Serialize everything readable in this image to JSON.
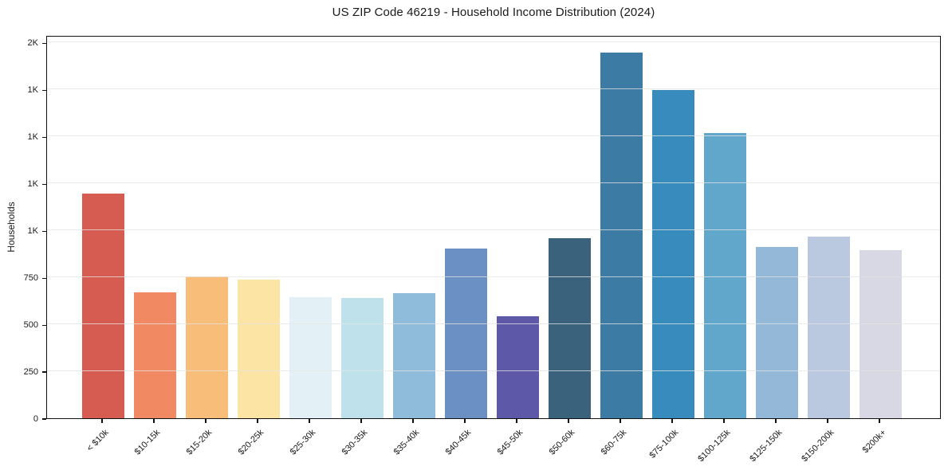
{
  "chart_data": {
    "type": "bar",
    "title": "US ZIP Code 46219 - Household Income Distribution (2024)",
    "ylabel": "Households",
    "xlabel": "",
    "categories": [
      "< $10k",
      "$10-15k",
      "$15-20k",
      "$20-25k",
      "$25-30k",
      "$30-35k",
      "$35-40k",
      "$40-45k",
      "$45-50k",
      "$50-60k",
      "$60-75k",
      "$75-100k",
      "$100-125k",
      "$125-150k",
      "$150-200k",
      "$200k+"
    ],
    "values": [
      1195,
      670,
      755,
      738,
      645,
      640,
      665,
      905,
      545,
      957,
      1945,
      1748,
      1518,
      910,
      965,
      895
    ],
    "bar_colors": [
      "#d65c52",
      "#f18a62",
      "#f9bd7a",
      "#fce5a4",
      "#e3f1f6",
      "#bfe1ec",
      "#8fbcdb",
      "#6a90c4",
      "#5d59a8",
      "#3a627c",
      "#3b7ba4",
      "#388cbd",
      "#61a7cc",
      "#94b8d7",
      "#bac8e0",
      "#d7d8e4"
    ],
    "ylim": [
      0,
      2040
    ],
    "yticks": [
      {
        "value": 0,
        "label": "0"
      },
      {
        "value": 250,
        "label": "250"
      },
      {
        "value": 500,
        "label": "500"
      },
      {
        "value": 750,
        "label": "750"
      },
      {
        "value": 1000,
        "label": "1K"
      },
      {
        "value": 1250,
        "label": "1K"
      },
      {
        "value": 1500,
        "label": "1K"
      },
      {
        "value": 1750,
        "label": "1K"
      },
      {
        "value": 2000,
        "label": "2K"
      }
    ],
    "grid": "horizontal",
    "legend": "none",
    "colors": {
      "background": "#ffffff",
      "gridline": "#e4e4e4",
      "spine": "#111111",
      "text": "#1a1a1a"
    }
  }
}
